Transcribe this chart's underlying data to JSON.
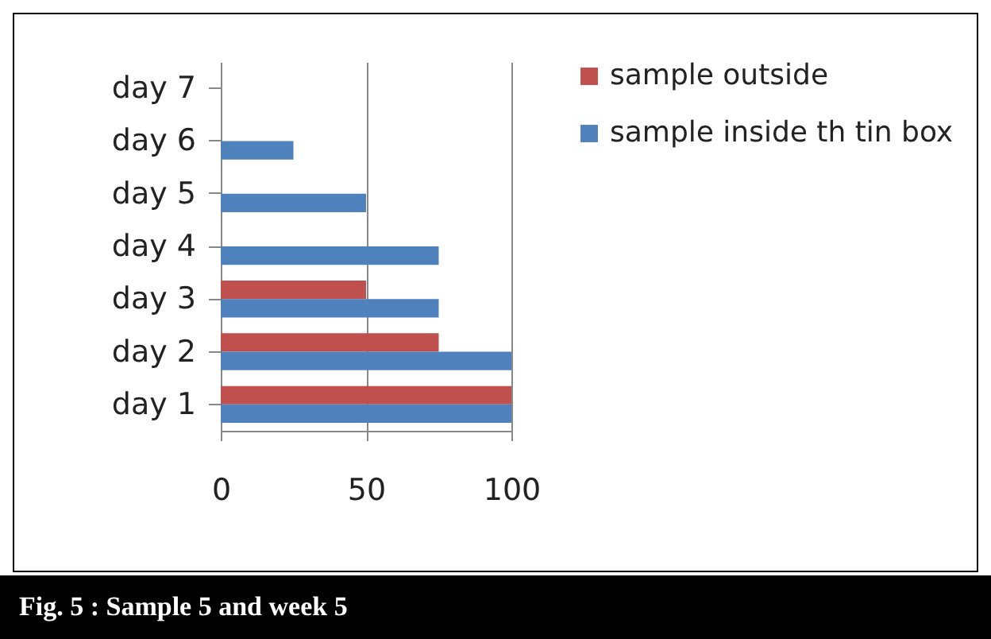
{
  "chart_data": {
    "type": "bar",
    "orientation": "horizontal",
    "categories": [
      "day 7",
      "day 6",
      "day 5",
      "day 4",
      "day 3",
      "day 2",
      "day 1"
    ],
    "series": [
      {
        "name": "sample outside",
        "color": "#c0504d",
        "values": [
          0,
          0,
          0,
          0,
          50,
          75,
          100
        ]
      },
      {
        "name": "sample inside th tin box",
        "color": "#4f81bd",
        "values": [
          0,
          25,
          50,
          75,
          75,
          100,
          100
        ]
      }
    ],
    "xlim": [
      0,
      100
    ],
    "xticks": [
      0,
      50,
      100
    ],
    "grid": "x",
    "legend": "right",
    "annotations": [
      "Fig. 5 : Sample 5 and week 5"
    ]
  }
}
